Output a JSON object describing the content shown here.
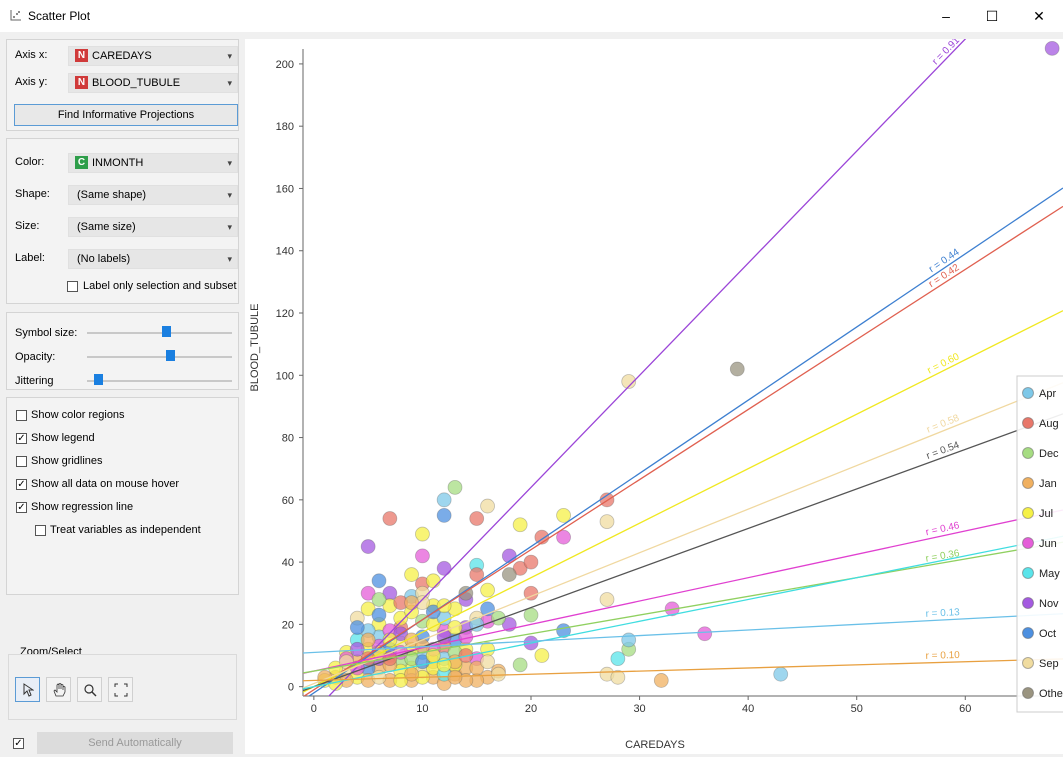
{
  "window": {
    "title": "Scatter Plot",
    "minimize": "–",
    "maximize": "☐",
    "close": "✕"
  },
  "axes_panel": {
    "axis_x_label": "Axis x:",
    "axis_x_value": "CAREDAYS",
    "axis_x_badge": "N",
    "axis_y_label": "Axis y:",
    "axis_y_value": "BLOOD_TUBULE",
    "axis_y_badge": "N",
    "find_button": "Find Informative Projections"
  },
  "attributes_panel": {
    "color_label": "Color:",
    "color_value": "INMONTH",
    "color_badge": "C",
    "shape_label": "Shape:",
    "shape_value": "(Same shape)",
    "size_label": "Size:",
    "size_value": "(Same size)",
    "label_label": "Label:",
    "label_value": "(No labels)",
    "label_only_selection": "Label only selection and subset"
  },
  "sliders": {
    "symbol_size_label": "Symbol size:",
    "symbol_size": 0.55,
    "opacity_label": "Opacity:",
    "opacity": 0.58,
    "jittering_label": "Jittering",
    "jittering": 0.05
  },
  "options": [
    {
      "label": "Show color regions",
      "checked": false
    },
    {
      "label": "Show legend",
      "checked": true
    },
    {
      "label": "Show gridlines",
      "checked": false
    },
    {
      "label": "Show all data on mouse hover",
      "checked": true
    },
    {
      "label": "Show regression line",
      "checked": true
    },
    {
      "label": "Treat variables as independent",
      "checked": false
    }
  ],
  "zoom": {
    "title": "Zoom/Select",
    "tools": [
      "pointer-icon",
      "hand-icon",
      "magnifier-icon",
      "fit-icon"
    ]
  },
  "send": {
    "checked": true,
    "label": "Send Automatically"
  },
  "chart_data": {
    "type": "scatter",
    "xlabel": "CAREDAYS",
    "ylabel": "BLOOD_TUBULE",
    "xlim": [
      -1,
      69
    ],
    "ylim": [
      -3,
      208
    ],
    "xticks": [
      0,
      10,
      20,
      30,
      40,
      50,
      60
    ],
    "yticks": [
      0,
      20,
      40,
      60,
      80,
      100,
      120,
      140,
      160,
      180,
      200
    ],
    "legend": {
      "position": "right",
      "entries": [
        "Apr",
        "Aug",
        "Dec",
        "Jan",
        "Jul",
        "Jun",
        "May",
        "Nov",
        "Oct",
        "Sep",
        "Other"
      ]
    },
    "colors": {
      "Apr": "#7ec8e8",
      "Aug": "#e8776a",
      "Dec": "#a6dc82",
      "Jan": "#f0b060",
      "Jul": "#f5f047",
      "Jun": "#e45ed8",
      "May": "#5ae4ea",
      "Nov": "#a45ae0",
      "Oct": "#4d90e0",
      "Sep": "#f0dca0",
      "Other": "#9a9480"
    },
    "regression": [
      {
        "series": "Nov",
        "r": "r = 0.91",
        "intercept": -8,
        "slope": 3.6,
        "color": "#9b45d8",
        "label_x": 59.5
      },
      {
        "series": "Oct",
        "r": "r = 0.44",
        "intercept": -2,
        "slope": 2.35,
        "color": "#3d7fd0",
        "label_x": 59.5
      },
      {
        "series": "Aug",
        "r": "r = 0.42",
        "intercept": -1,
        "slope": 2.25,
        "color": "#e06050",
        "label_x": 59.5
      },
      {
        "series": "Jul",
        "r": "r = 0.60",
        "intercept": 0,
        "slope": 1.75,
        "color": "#f0e820",
        "label_x": 59.5
      },
      {
        "series": "Sep",
        "r": "r = 0.58",
        "intercept": 1,
        "slope": 1.4,
        "color": "#f0d8a0",
        "label_x": 59.5
      },
      {
        "series": "Other",
        "r": "r = 0.54",
        "intercept": 0,
        "slope": 1.27,
        "color": "#555555",
        "label_x": 59.5
      },
      {
        "series": "Jun",
        "r": "r = 0.46",
        "intercept": 5,
        "slope": 0.75,
        "color": "#e040d0",
        "label_x": 59.5
      },
      {
        "series": "Dec",
        "r": "r = 0.36",
        "intercept": 5,
        "slope": 0.6,
        "color": "#90d060",
        "label_x": 59.5
      },
      {
        "series": "May",
        "r": "",
        "intercept": 0,
        "slope": 0.7,
        "color": "#40dde0",
        "label_x": 59.5
      },
      {
        "series": "Apr",
        "r": "r = 0.13",
        "intercept": 11,
        "slope": 0.18,
        "color": "#6ac0e8",
        "label_x": 59.5
      },
      {
        "series": "Jan",
        "r": "r = 0.10",
        "intercept": 2,
        "slope": 0.1,
        "color": "#e8a040",
        "label_x": 59.5
      }
    ],
    "points": [
      [
        68,
        205,
        "Nov"
      ],
      [
        39,
        102,
        "Other"
      ],
      [
        29,
        98,
        "Sep"
      ],
      [
        13,
        64,
        "Dec"
      ],
      [
        12,
        60,
        "Apr"
      ],
      [
        12,
        55,
        "Oct"
      ],
      [
        16,
        58,
        "Sep"
      ],
      [
        15,
        54,
        "Aug"
      ],
      [
        7,
        54,
        "Aug"
      ],
      [
        23,
        55,
        "Jul"
      ],
      [
        27,
        60,
        "Aug"
      ],
      [
        10,
        49,
        "Jul"
      ],
      [
        19,
        52,
        "Jul"
      ],
      [
        23,
        48,
        "Jun"
      ],
      [
        21,
        48,
        "Aug"
      ],
      [
        27,
        53,
        "Sep"
      ],
      [
        5,
        45,
        "Nov"
      ],
      [
        10,
        42,
        "Jun"
      ],
      [
        18,
        42,
        "Nov"
      ],
      [
        15,
        39,
        "May"
      ],
      [
        12,
        38,
        "Nov"
      ],
      [
        19,
        38,
        "Aug"
      ],
      [
        20,
        40,
        "Aug"
      ],
      [
        18,
        36,
        "Other"
      ],
      [
        15,
        36,
        "Aug"
      ],
      [
        9,
        36,
        "Jul"
      ],
      [
        6,
        34,
        "Oct"
      ],
      [
        10,
        33,
        "Aug"
      ],
      [
        11,
        34,
        "Jul"
      ],
      [
        7,
        30,
        "Nov"
      ],
      [
        5,
        30,
        "Jun"
      ],
      [
        9,
        29,
        "Apr"
      ],
      [
        10,
        30,
        "Sep"
      ],
      [
        14,
        28,
        "Nov"
      ],
      [
        14,
        30,
        "Other"
      ],
      [
        16,
        31,
        "Jul"
      ],
      [
        20,
        30,
        "Aug"
      ],
      [
        13,
        25,
        "Jul"
      ],
      [
        15,
        22,
        "Sep"
      ],
      [
        4,
        22,
        "Sep"
      ],
      [
        6,
        20,
        "Jul"
      ],
      [
        8,
        19,
        "Aug"
      ],
      [
        10,
        21,
        "Dec"
      ],
      [
        12,
        18,
        "Jun"
      ],
      [
        14,
        19,
        "Nov"
      ],
      [
        16,
        21,
        "Jun"
      ],
      [
        18,
        20,
        "Nov"
      ],
      [
        20,
        23,
        "Dec"
      ],
      [
        23,
        18,
        "Oct"
      ],
      [
        27,
        28,
        "Sep"
      ],
      [
        29,
        12,
        "Dec"
      ],
      [
        29,
        15,
        "Apr"
      ],
      [
        28,
        9,
        "May"
      ],
      [
        33,
        25,
        "Jun"
      ],
      [
        36,
        17,
        "Jun"
      ],
      [
        43,
        4,
        "Apr"
      ],
      [
        32,
        2,
        "Jan"
      ],
      [
        27,
        4,
        "Sep"
      ],
      [
        28,
        3,
        "Sep"
      ],
      [
        21,
        10,
        "Jul"
      ],
      [
        20,
        14,
        "Nov"
      ],
      [
        19,
        7,
        "Dec"
      ],
      [
        17,
        5,
        "Jan"
      ],
      [
        16,
        3,
        "Jan"
      ],
      [
        15,
        9,
        "Jun"
      ],
      [
        14,
        12,
        "Jul"
      ],
      [
        13,
        15,
        "Oct"
      ],
      [
        12,
        13,
        "Aug"
      ],
      [
        11,
        8,
        "Jan"
      ],
      [
        10,
        11,
        "Apr"
      ],
      [
        9,
        6,
        "Jul"
      ],
      [
        8,
        14,
        "Sep"
      ],
      [
        7,
        10,
        "Jun"
      ],
      [
        6,
        16,
        "Apr"
      ],
      [
        5,
        12,
        "Jul"
      ],
      [
        4,
        8,
        "Jan"
      ],
      [
        3,
        5,
        "Sep"
      ],
      [
        2,
        3,
        "Jan"
      ],
      [
        1,
        2,
        "Jul"
      ],
      [
        3,
        11,
        "Jul"
      ],
      [
        4,
        15,
        "May"
      ],
      [
        5,
        18,
        "Apr"
      ],
      [
        6,
        6,
        "Jan"
      ],
      [
        7,
        2,
        "Jan"
      ],
      [
        8,
        8,
        "Dec"
      ],
      [
        9,
        2,
        "Jan"
      ],
      [
        10,
        5,
        "Sep"
      ],
      [
        11,
        3,
        "Jan"
      ],
      [
        12,
        1,
        "Jan"
      ],
      [
        13,
        4,
        "Jan"
      ],
      [
        14,
        6,
        "Jan"
      ],
      [
        15,
        2,
        "Jan"
      ],
      [
        16,
        12,
        "Jul"
      ],
      [
        17,
        4,
        "Sep"
      ],
      [
        4,
        19,
        "Oct"
      ],
      [
        5,
        25,
        "Jul"
      ],
      [
        6,
        13,
        "Jun"
      ],
      [
        7,
        18,
        "Jun"
      ],
      [
        8,
        22,
        "Jul"
      ],
      [
        9,
        12,
        "Jul"
      ],
      [
        10,
        16,
        "Oct"
      ],
      [
        11,
        20,
        "Jul"
      ],
      [
        12,
        9,
        "Apr"
      ],
      [
        13,
        11,
        "Dec"
      ],
      [
        14,
        16,
        "Jun"
      ],
      [
        3,
        9,
        "Jun"
      ],
      [
        2,
        6,
        "Jul"
      ],
      [
        6,
        9,
        "Nov"
      ],
      [
        7,
        12,
        "Oct"
      ],
      [
        8,
        5,
        "Jul"
      ],
      [
        9,
        9,
        "Dec"
      ],
      [
        10,
        3,
        "Jul"
      ],
      [
        11,
        6,
        "Jul"
      ],
      [
        12,
        4,
        "May"
      ],
      [
        13,
        7,
        "Jul"
      ],
      [
        14,
        2,
        "Jan"
      ],
      [
        8,
        17,
        "Nov"
      ],
      [
        9,
        24,
        "Jul"
      ],
      [
        11,
        26,
        "Jul"
      ],
      [
        12,
        22,
        "Apr"
      ],
      [
        13,
        19,
        "Jul"
      ],
      [
        10,
        27,
        "Sep"
      ],
      [
        7,
        26,
        "Jul"
      ],
      [
        6,
        28,
        "Dec"
      ],
      [
        5,
        6,
        "Oct"
      ],
      [
        4,
        3,
        "Jul"
      ],
      [
        3,
        2,
        "Jan"
      ],
      [
        2,
        1,
        "Jul"
      ],
      [
        1,
        3,
        "Jan"
      ],
      [
        5,
        2,
        "Jan"
      ],
      [
        6,
        3,
        "Sep"
      ],
      [
        7,
        7,
        "Jan"
      ],
      [
        8,
        2,
        "Jul"
      ],
      [
        9,
        4,
        "Jan"
      ],
      [
        10,
        8,
        "Oct"
      ],
      [
        11,
        12,
        "Jun"
      ],
      [
        12,
        16,
        "Nov"
      ],
      [
        13,
        8,
        "Jan"
      ],
      [
        14,
        10,
        "Aug"
      ],
      [
        15,
        6,
        "Jan"
      ],
      [
        16,
        8,
        "Sep"
      ],
      [
        6,
        11,
        "Jul"
      ],
      [
        7,
        15,
        "Jul"
      ],
      [
        8,
        11,
        "Jun"
      ],
      [
        9,
        15,
        "Jan"
      ],
      [
        10,
        13,
        "Jan"
      ],
      [
        11,
        10,
        "Jul"
      ],
      [
        12,
        7,
        "Jul"
      ],
      [
        13,
        3,
        "Jan"
      ],
      [
        4,
        12,
        "Nov"
      ],
      [
        5,
        9,
        "Aug"
      ],
      [
        8,
        27,
        "Aug"
      ],
      [
        9,
        27,
        "Jan"
      ],
      [
        11,
        24,
        "Oct"
      ],
      [
        12,
        26,
        "Jul"
      ],
      [
        15,
        20,
        "Apr"
      ],
      [
        16,
        25,
        "Oct"
      ],
      [
        17,
        22,
        "Dec"
      ],
      [
        6,
        23,
        "Oct"
      ],
      [
        7,
        9,
        "Aug"
      ],
      [
        4,
        6,
        "Jun"
      ],
      [
        3,
        8,
        "Sep"
      ],
      [
        5,
        15,
        "Jan"
      ]
    ]
  }
}
